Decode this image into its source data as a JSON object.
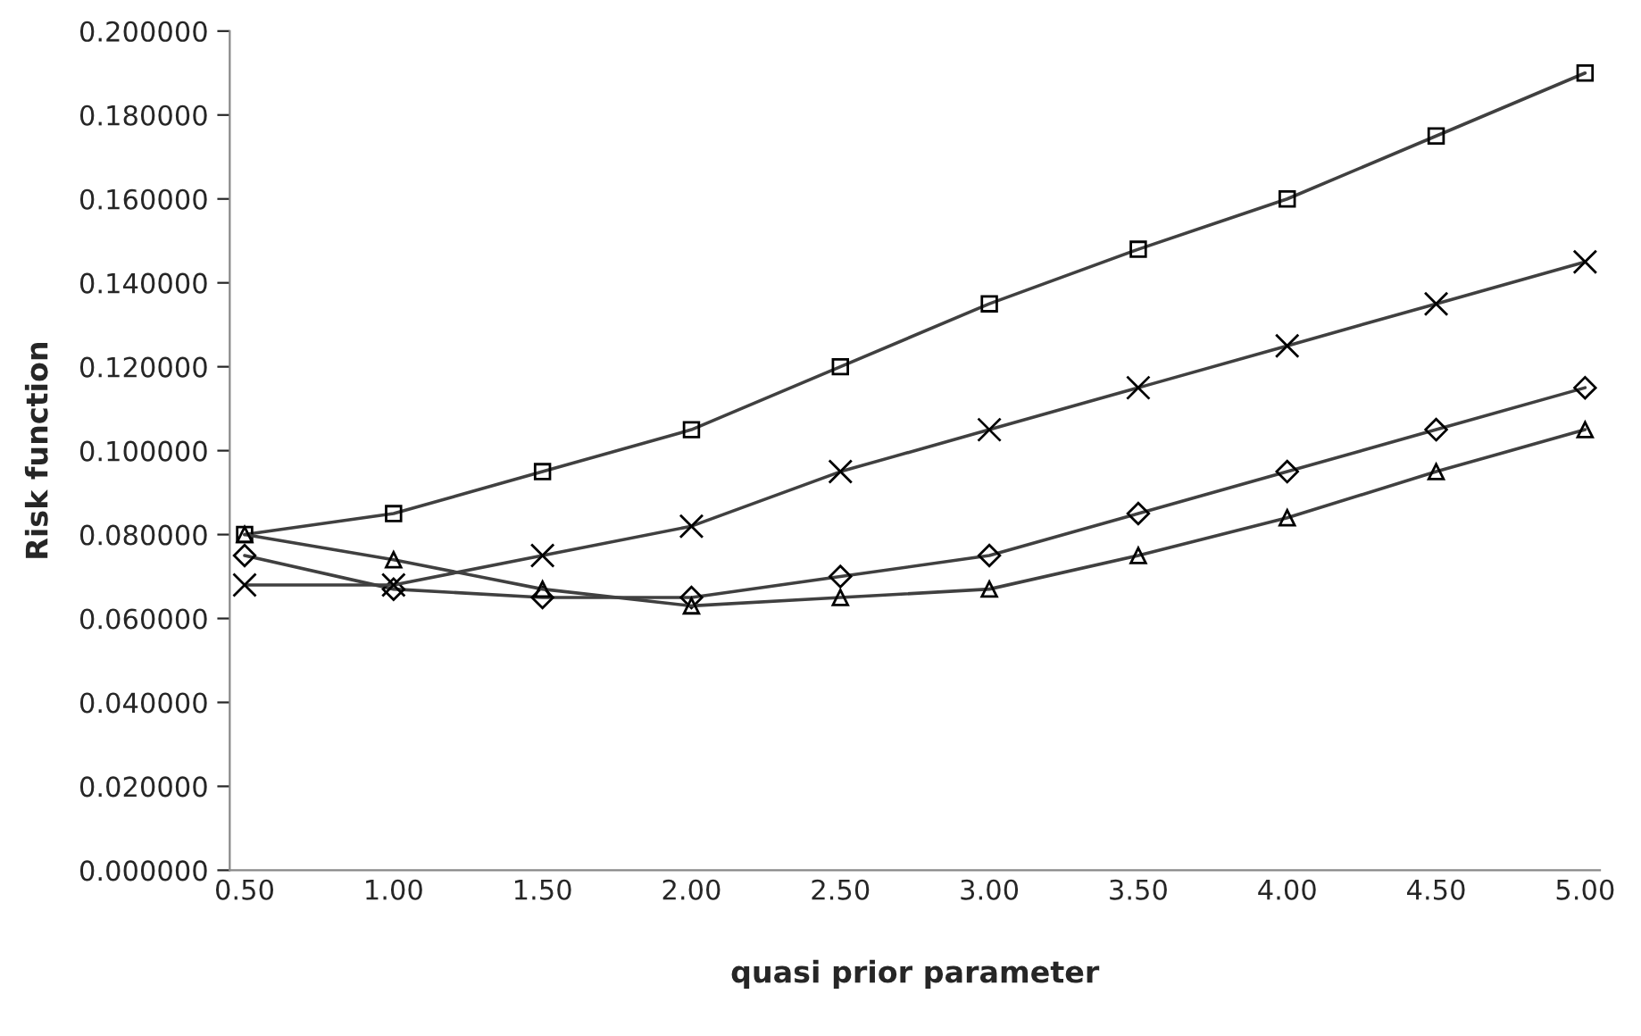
{
  "chart_data": {
    "type": "line",
    "xlabel": "quasi prior parameter",
    "ylabel": "Risk function",
    "categories": [
      "0.50",
      "1.00",
      "1.50",
      "2.00",
      "2.50",
      "3.00",
      "3.50",
      "4.00",
      "4.50",
      "5.00"
    ],
    "series": [
      {
        "color": "#404040",
        "marker": "square",
        "values": [
          0.08,
          0.085,
          0.095,
          0.105,
          0.12,
          0.135,
          0.148,
          0.16,
          0.175,
          0.19
        ]
      },
      {
        "color": "#404040",
        "marker": "cross",
        "values": [
          0.068,
          0.068,
          0.075,
          0.082,
          0.095,
          0.105,
          0.115,
          0.125,
          0.135,
          0.145
        ]
      },
      {
        "color": "#404040",
        "marker": "diamond",
        "values": [
          0.075,
          0.067,
          0.065,
          0.065,
          0.07,
          0.075,
          0.085,
          0.095,
          0.105,
          0.115
        ]
      },
      {
        "color": "#404040",
        "marker": "triangle",
        "values": [
          0.08,
          0.074,
          0.067,
          0.063,
          0.065,
          0.067,
          0.075,
          0.084,
          0.095,
          0.105
        ]
      }
    ],
    "ylim": [
      0,
      0.2
    ],
    "yticks": [
      {
        "value": 0,
        "label": "0.000000"
      },
      {
        "value": 0.02,
        "label": "0.020000"
      },
      {
        "value": 0.04,
        "label": "0.040000"
      },
      {
        "value": 0.06,
        "label": "0.060000"
      },
      {
        "value": 0.08,
        "label": "0.080000"
      },
      {
        "value": 0.1,
        "label": "0.100000"
      },
      {
        "value": 0.12,
        "label": "0.120000"
      },
      {
        "value": 0.14,
        "label": "0.140000"
      },
      {
        "value": 0.16,
        "label": "0.160000"
      },
      {
        "value": 0.18,
        "label": "0.180000"
      },
      {
        "value": 0.2,
        "label": "0.200000"
      }
    ],
    "grid": false,
    "legend": false,
    "line_style": "solid"
  }
}
